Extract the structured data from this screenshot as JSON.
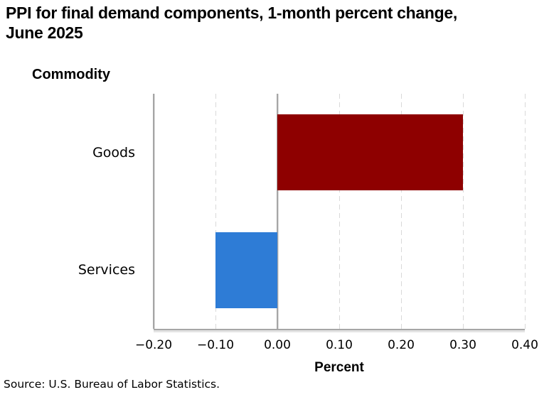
{
  "header": {
    "title_lines": [
      "PPI for final demand components, 1-month percent change,",
      "June 2025"
    ]
  },
  "source_note": "Source: U.S. Bureau of Labor Statistics.",
  "chart_data": {
    "type": "bar",
    "orientation": "horizontal",
    "title": "PPI for final demand components, 1-month percent change, June 2025",
    "ylabel": "Commodity",
    "xlabel": "Percent",
    "categories": [
      "Goods",
      "Services"
    ],
    "values": [
      0.3,
      -0.1
    ],
    "bar_colors": [
      "#8e0000",
      "#2e7cd6"
    ],
    "xlim": [
      -0.2,
      0.4
    ],
    "xticks": [
      -0.2,
      -0.1,
      0,
      0.1,
      0.2,
      0.3,
      0.4
    ],
    "xtick_labels": [
      "−0.20",
      "−0.10",
      "0.00",
      "0.10",
      "0.20",
      "0.30",
      "0.40"
    ],
    "grid": {
      "vertical_gridlines": "dashed",
      "gridline_color": "#d9d9d9",
      "axis_line_color": "#a6a6a6",
      "solid_lines_at": [
        -0.2,
        0
      ],
      "legend": "none"
    }
  }
}
